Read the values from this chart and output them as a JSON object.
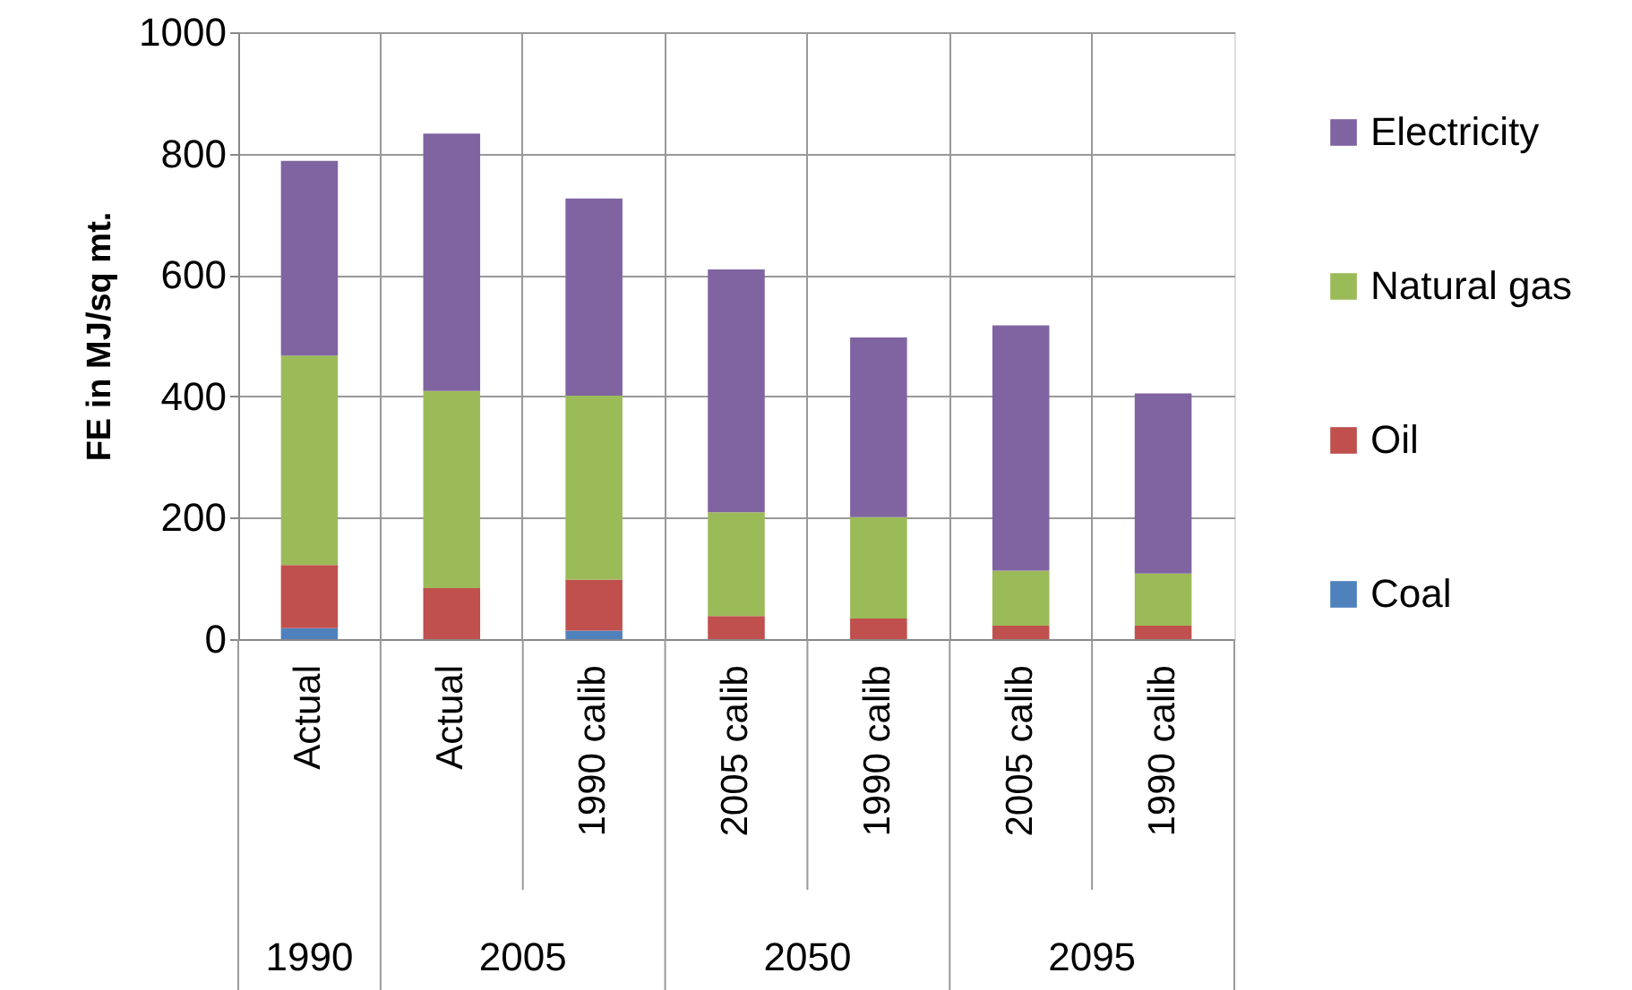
{
  "chart_data": {
    "type": "bar",
    "stacked": true,
    "ylabel": "FE in MJ/sq mt.",
    "categories": [
      "Actual",
      "Actual",
      "1990 calib",
      "2005 calib",
      "1990 calib",
      "2005 calib",
      "1990 calib"
    ],
    "annotations": [
      "1990",
      "2005",
      "2050",
      "2095"
    ],
    "series": [
      {
        "name": "Coal",
        "color": "#4f81bd",
        "values": [
          18,
          0,
          14,
          0,
          0,
          0,
          0
        ]
      },
      {
        "name": "Oil",
        "color": "#c0504d",
        "values": [
          104,
          84,
          84,
          38,
          34,
          22,
          22
        ]
      },
      {
        "name": "Natural gas",
        "color": "#9bbb59",
        "values": [
          345,
          325,
          303,
          171,
          167,
          91,
          86
        ]
      },
      {
        "name": "Electricity",
        "color": "#8064a2",
        "values": [
          321,
          424,
          325,
          400,
          296,
          404,
          297
        ]
      }
    ],
    "ylim": [
      0,
      1000
    ],
    "yticks": [
      0,
      200,
      400,
      600,
      800,
      1000
    ],
    "grid": true,
    "legend": "right"
  }
}
